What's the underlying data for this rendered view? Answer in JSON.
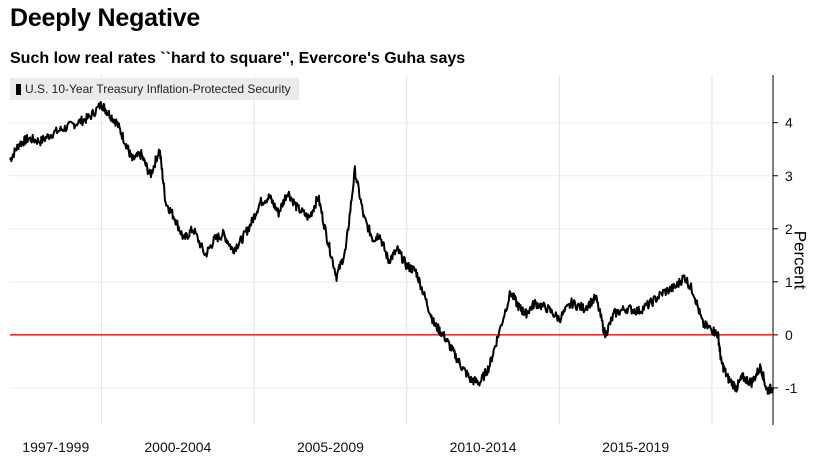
{
  "header": {
    "title": "Deeply Negative",
    "subtitle": "Such low real rates ``hard to square'', Evercore's Guha says"
  },
  "chart_data": {
    "type": "line",
    "title": "Deeply Negative",
    "subtitle": "Such low real rates ``hard to square'', Evercore's Guha says",
    "xlabel": "",
    "ylabel": "Percent",
    "ylim": [
      -1.7,
      4.9
    ],
    "yticks": [
      4,
      3,
      2,
      1,
      0,
      -1
    ],
    "x_tick_labels": [
      "1997-1999",
      "2000-2004",
      "2005-2009",
      "2010-2014",
      "2015-2019"
    ],
    "legend_placement": "top-left",
    "grid": "vertical",
    "reference_line": {
      "y": 0,
      "color": "#e8322b"
    },
    "series": [
      {
        "name": "U.S. 10-Year Treasury Inflation-Protected Security",
        "color": "#000000",
        "x": [
          1997.0,
          1997.3,
          1997.6,
          1998.0,
          1998.4,
          1998.8,
          1999.2,
          1999.6,
          2000.0,
          2000.2,
          2000.5,
          2000.8,
          2001.0,
          2001.3,
          2001.6,
          2001.9,
          2002.1,
          2002.4,
          2002.7,
          2003.0,
          2003.4,
          2003.7,
          2004.0,
          2004.3,
          2004.6,
          2004.9,
          2005.2,
          2005.5,
          2005.8,
          2006.1,
          2006.4,
          2006.8,
          2007.1,
          2007.4,
          2007.7,
          2008.0,
          2008.3,
          2008.6,
          2008.9,
          2009.1,
          2009.4,
          2009.7,
          2010.0,
          2010.3,
          2010.6,
          2010.9,
          2011.2,
          2011.5,
          2011.8,
          2012.1,
          2012.4,
          2012.7,
          2013.0,
          2013.4,
          2013.7,
          2013.9,
          2014.2,
          2014.6,
          2015.0,
          2015.4,
          2015.8,
          2016.2,
          2016.5,
          2016.8,
          2017.2,
          2017.6,
          2018.0,
          2018.4,
          2018.8,
          2019.1,
          2019.4,
          2019.7,
          2020.0,
          2020.2,
          2020.3,
          2020.5,
          2020.8,
          2021.0,
          2021.3,
          2021.6,
          2021.8,
          2022.0
        ],
        "values": [
          3.3,
          3.6,
          3.7,
          3.65,
          3.8,
          3.9,
          4.0,
          4.1,
          4.35,
          4.2,
          4.0,
          3.6,
          3.3,
          3.4,
          3.0,
          3.5,
          2.5,
          2.2,
          1.8,
          2.0,
          1.5,
          1.8,
          1.9,
          1.6,
          1.8,
          2.1,
          2.5,
          2.6,
          2.3,
          2.7,
          2.4,
          2.2,
          2.6,
          1.8,
          1.1,
          1.6,
          3.1,
          2.2,
          1.8,
          1.9,
          1.4,
          1.6,
          1.3,
          1.2,
          0.7,
          0.2,
          0.0,
          -0.3,
          -0.6,
          -0.85,
          -0.9,
          -0.6,
          0.0,
          0.8,
          0.5,
          0.4,
          0.6,
          0.5,
          0.3,
          0.6,
          0.5,
          0.7,
          0.0,
          0.4,
          0.5,
          0.45,
          0.6,
          0.8,
          0.9,
          1.1,
          0.8,
          0.2,
          0.1,
          0.0,
          -0.5,
          -0.8,
          -1.0,
          -0.8,
          -0.9,
          -0.6,
          -1.05,
          -1.0
        ]
      }
    ]
  }
}
